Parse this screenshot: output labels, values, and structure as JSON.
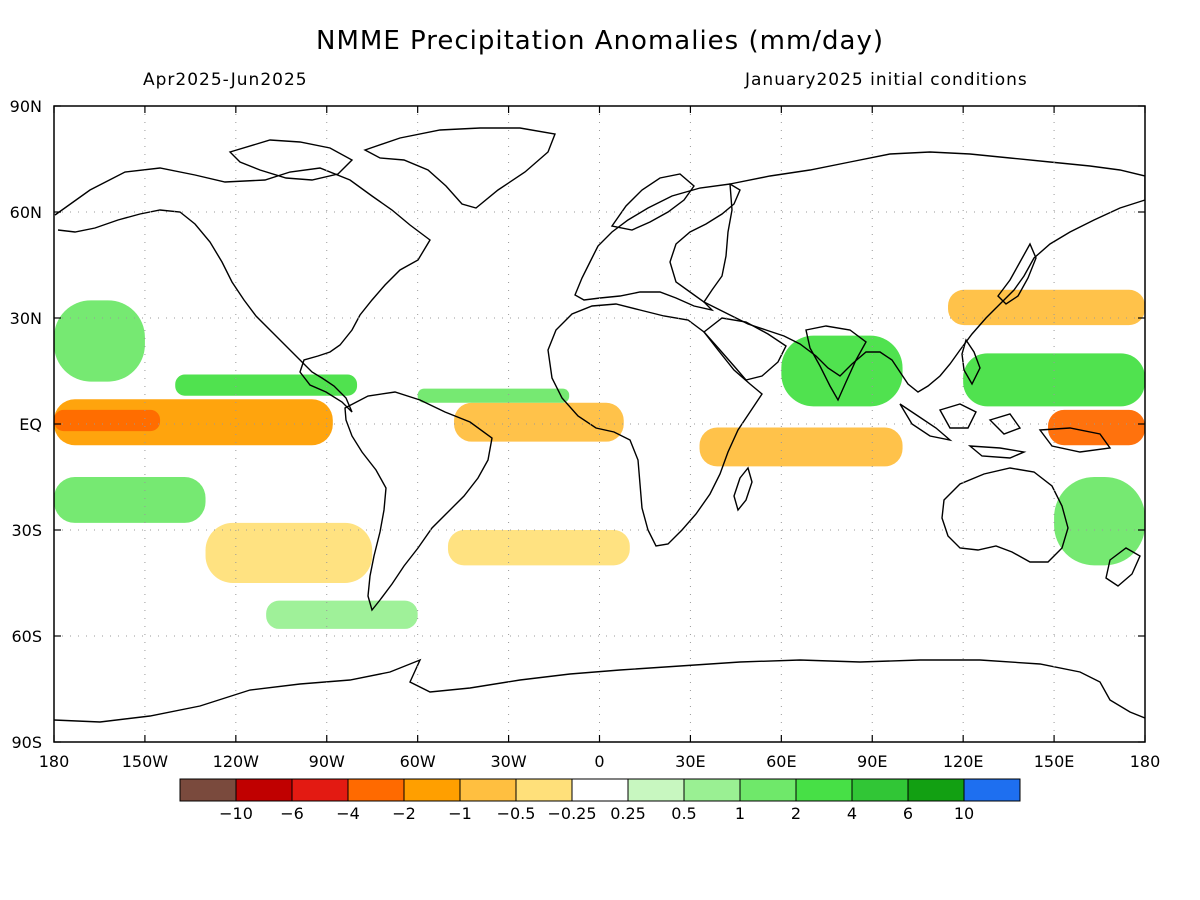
{
  "title": "NMME Precipitation Anomalies (mm/day)",
  "subtitle_left": "Apr2025-Jun2025",
  "subtitle_right": "January2025 initial conditions",
  "map": {
    "projection": "equirectangular",
    "lon_range": [
      -180,
      180
    ],
    "lat_range": [
      -90,
      90
    ],
    "grid": true,
    "x_ticks": [
      {
        "lon": -180,
        "label": "180"
      },
      {
        "lon": -150,
        "label": "150W"
      },
      {
        "lon": -120,
        "label": "120W"
      },
      {
        "lon": -90,
        "label": "90W"
      },
      {
        "lon": -60,
        "label": "60W"
      },
      {
        "lon": -30,
        "label": "30W"
      },
      {
        "lon": 0,
        "label": "0"
      },
      {
        "lon": 30,
        "label": "30E"
      },
      {
        "lon": 60,
        "label": "60E"
      },
      {
        "lon": 90,
        "label": "90E"
      },
      {
        "lon": 120,
        "label": "120E"
      },
      {
        "lon": 150,
        "label": "150E"
      },
      {
        "lon": 180,
        "label": "180"
      }
    ],
    "y_ticks": [
      {
        "lat": 90,
        "label": "90N"
      },
      {
        "lat": 60,
        "label": "60N"
      },
      {
        "lat": 30,
        "label": "30N"
      },
      {
        "lat": 0,
        "label": "EQ"
      },
      {
        "lat": -30,
        "label": "30S"
      },
      {
        "lat": -60,
        "label": "60S"
      },
      {
        "lat": -90,
        "label": "90S"
      }
    ],
    "anomaly_regions": [
      {
        "label": "eastern tropical Pacific dry band",
        "level": -2,
        "lon": [
          -180,
          -88
        ],
        "lat": [
          -6,
          7
        ]
      },
      {
        "label": "central Pacific equatorial core",
        "level": -4,
        "lon": [
          -180,
          -145
        ],
        "lat": [
          -2,
          4
        ]
      },
      {
        "label": "tropical Atlantic dry band",
        "level": -1,
        "lon": [
          -48,
          8
        ],
        "lat": [
          -5,
          6
        ]
      },
      {
        "label": "Indian Ocean equatorial dry band",
        "level": -1,
        "lon": [
          33,
          100
        ],
        "lat": [
          -12,
          -1
        ]
      },
      {
        "label": "western Pacific dry core",
        "level": -4,
        "lon": [
          148,
          180
        ],
        "lat": [
          -6,
          4
        ]
      },
      {
        "label": "Kuroshio extension dry band",
        "level": -1,
        "lon": [
          115,
          180
        ],
        "lat": [
          28,
          38
        ]
      },
      {
        "label": "north Pacific ITCZ wet band",
        "level": 2,
        "lon": [
          -140,
          -80
        ],
        "lat": [
          8,
          14
        ]
      },
      {
        "label": "central north Pacific wet",
        "level": 1,
        "lon": [
          -180,
          -150
        ],
        "lat": [
          12,
          35
        ]
      },
      {
        "label": "south Pacific wet",
        "level": 1,
        "lon": [
          -180,
          -130
        ],
        "lat": [
          -28,
          -15
        ]
      },
      {
        "label": "Atlantic ITCZ wet",
        "level": 1,
        "lon": [
          -60,
          -10
        ],
        "lat": [
          6,
          10
        ]
      },
      {
        "label": "Indian monsoon / Bay of Bengal wet",
        "level": 2,
        "lon": [
          60,
          100
        ],
        "lat": [
          5,
          25
        ]
      },
      {
        "label": "western Pacific warm pool wet",
        "level": 2,
        "lon": [
          120,
          180
        ],
        "lat": [
          5,
          20
        ]
      },
      {
        "label": "southwest Pacific wet",
        "level": 1,
        "lon": [
          150,
          180
        ],
        "lat": [
          -40,
          -15
        ]
      },
      {
        "label": "southeast Pacific dry",
        "level": -0.5,
        "lon": [
          -130,
          -75
        ],
        "lat": [
          -45,
          -28
        ]
      },
      {
        "label": "south Atlantic dry",
        "level": -0.5,
        "lon": [
          -50,
          10
        ],
        "lat": [
          -40,
          -30
        ]
      },
      {
        "label": "southern ocean wet",
        "level": 0.5,
        "lon": [
          -110,
          -60
        ],
        "lat": [
          -58,
          -50
        ]
      }
    ]
  },
  "colorbar": {
    "levels": [
      "-10",
      "-6",
      "-4",
      "-2",
      "-1",
      "-0.5",
      "-0.25",
      "0.25",
      "0.5",
      "1",
      "2",
      "4",
      "6",
      "10"
    ],
    "colors": [
      "#7a4a3d",
      "#c00000",
      "#e31a12",
      "#ff6a00",
      "#ff9f00",
      "#ffbf40",
      "#ffe07a",
      "#ffffff",
      "#c8f7c0",
      "#9af093",
      "#6fe86a",
      "#47e046",
      "#31c636",
      "#12a012",
      "#1e6ff0"
    ]
  }
}
